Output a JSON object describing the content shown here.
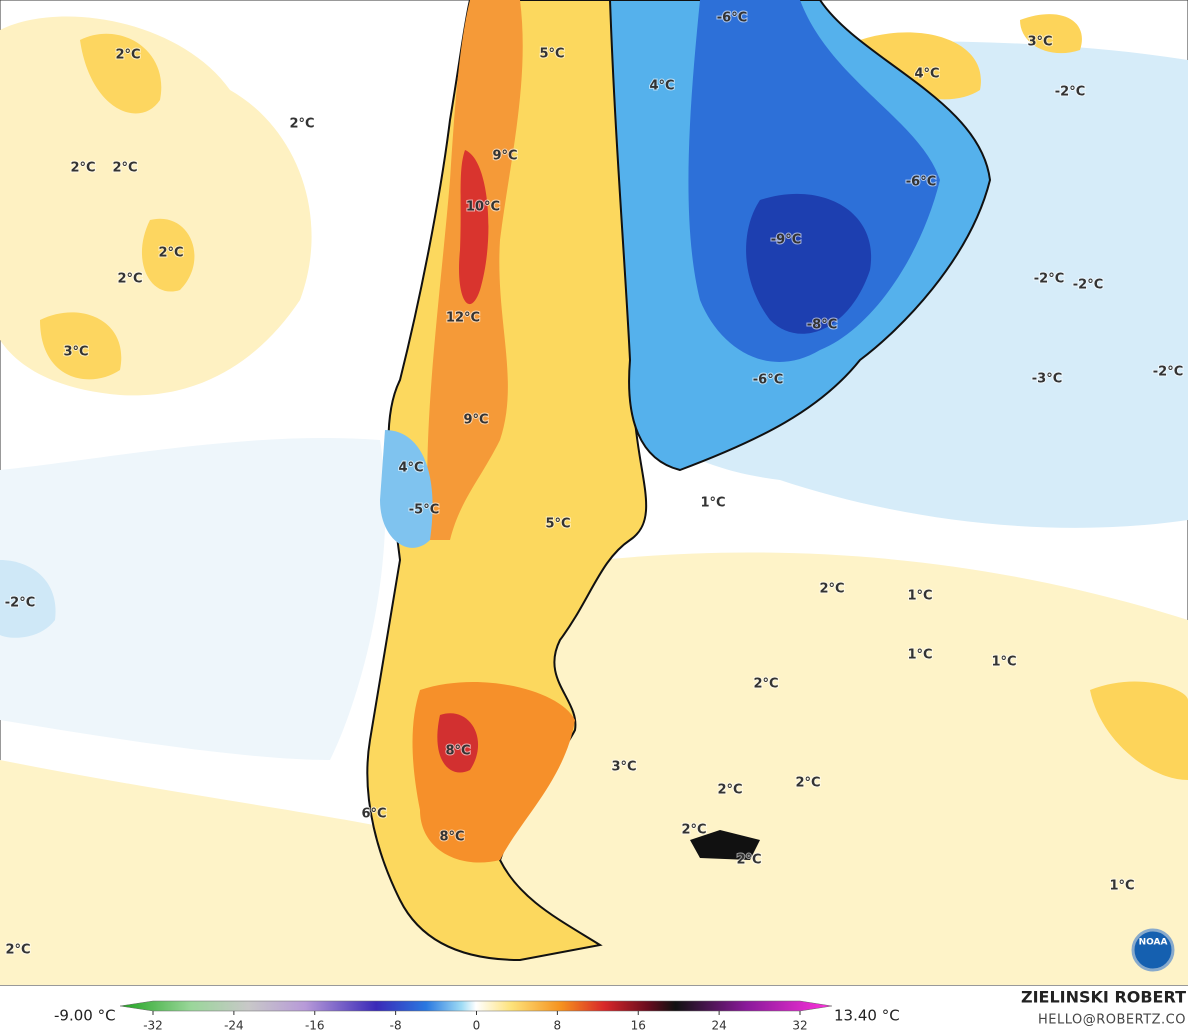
{
  "map": {
    "labels": [
      "2°C",
      "2°C",
      "2°C",
      "2°C",
      "2°C",
      "2°C",
      "3°C",
      "5°C",
      "4°C",
      "-6°C",
      "9°C",
      "10°C",
      "12°C",
      "9°C",
      "4°C",
      "-5°C",
      "5°C",
      "-9°C",
      "-8°C",
      "-6°C",
      "-6°C",
      "4°C",
      "3°C",
      "-2°C",
      "-2°C",
      "-2°C",
      "-3°C",
      "-2°C",
      "1°C",
      "2°C",
      "1°C",
      "1°C",
      "1°C",
      "2°C",
      "-2°C",
      "8°C",
      "3°C",
      "2°C",
      "2°C",
      "2°C",
      "2°C",
      "6°C",
      "8°C",
      "1°C",
      "2°C"
    ],
    "logo": "NOAA"
  },
  "colorbar": {
    "min_label": "-9.00 °C",
    "max_label": "13.40 °C",
    "ticks": [
      -32,
      -24,
      -16,
      -8,
      0,
      8,
      16,
      24,
      32
    ]
  },
  "credit": {
    "author": "ZIELINSKI ROBERT",
    "email": "HELLO@ROBERTZ.CO"
  }
}
